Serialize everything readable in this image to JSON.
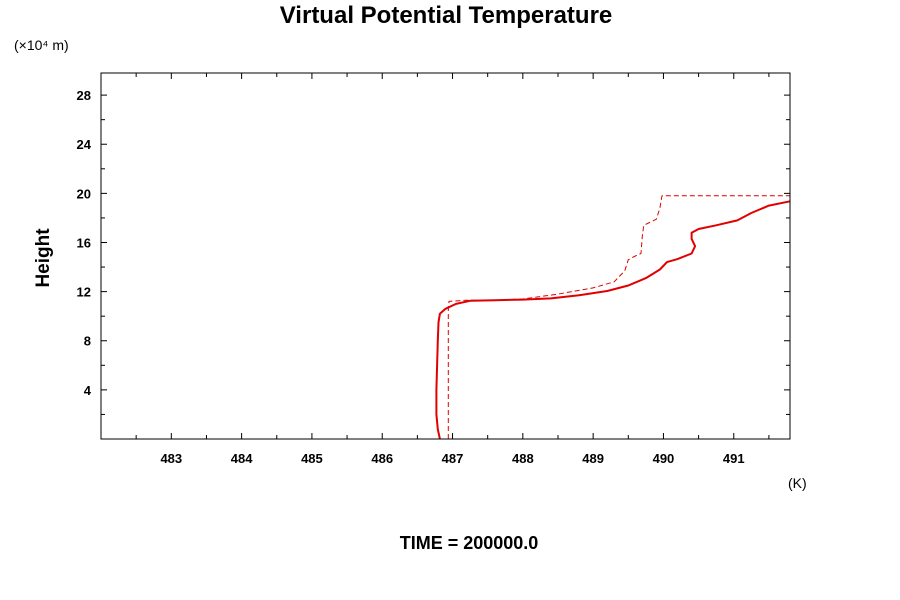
{
  "chart_data": {
    "type": "line",
    "title": "Virtual Potential Temperature",
    "y_unit_label": "(×10⁴ m)",
    "x_unit_label": "(K)",
    "ylabel": "Height",
    "xlabel": "",
    "footer": "TIME = 200000.0",
    "xlim": [
      482.0,
      491.8
    ],
    "ylim": [
      0.0,
      29.8
    ],
    "x_ticks": [
      483,
      484,
      485,
      486,
      487,
      488,
      489,
      490,
      491
    ],
    "y_ticks": [
      4,
      8,
      12,
      16,
      20,
      24,
      28
    ],
    "grid": false,
    "color": "#e00000",
    "series": [
      {
        "style": "solid",
        "points": [
          [
            486.82,
            0.0
          ],
          [
            486.79,
            0.8
          ],
          [
            486.77,
            2.0
          ],
          [
            486.77,
            4.0
          ],
          [
            486.78,
            6.0
          ],
          [
            486.79,
            8.0
          ],
          [
            486.8,
            9.5
          ],
          [
            486.82,
            10.2
          ],
          [
            486.9,
            10.6
          ],
          [
            487.05,
            11.0
          ],
          [
            487.25,
            11.25
          ],
          [
            487.6,
            11.3
          ],
          [
            488.0,
            11.35
          ],
          [
            488.4,
            11.45
          ],
          [
            488.8,
            11.7
          ],
          [
            489.2,
            12.05
          ],
          [
            489.5,
            12.5
          ],
          [
            489.75,
            13.1
          ],
          [
            489.95,
            13.8
          ],
          [
            490.05,
            14.4
          ],
          [
            490.2,
            14.65
          ],
          [
            490.4,
            15.1
          ],
          [
            490.45,
            15.7
          ],
          [
            490.4,
            16.3
          ],
          [
            490.4,
            16.8
          ],
          [
            490.5,
            17.1
          ],
          [
            490.75,
            17.4
          ],
          [
            491.05,
            17.8
          ],
          [
            491.25,
            18.4
          ],
          [
            491.5,
            19.0
          ],
          [
            491.8,
            19.35
          ]
        ]
      },
      {
        "style": "dashed",
        "points": [
          [
            486.94,
            0.0
          ],
          [
            486.94,
            2.0
          ],
          [
            486.94,
            6.0
          ],
          [
            486.94,
            10.5
          ],
          [
            486.95,
            11.2
          ],
          [
            487.2,
            11.3
          ],
          [
            487.6,
            11.3
          ],
          [
            488.0,
            11.4
          ],
          [
            488.5,
            11.8
          ],
          [
            489.0,
            12.3
          ],
          [
            489.3,
            12.8
          ],
          [
            489.45,
            13.7
          ],
          [
            489.5,
            14.6
          ],
          [
            489.6,
            14.9
          ],
          [
            489.68,
            15.1
          ],
          [
            489.7,
            16.6
          ],
          [
            489.72,
            17.4
          ],
          [
            489.9,
            17.9
          ],
          [
            489.95,
            18.8
          ],
          [
            489.98,
            19.8
          ],
          [
            490.4,
            19.8
          ],
          [
            491.0,
            19.8
          ],
          [
            491.8,
            19.8
          ]
        ]
      }
    ]
  }
}
